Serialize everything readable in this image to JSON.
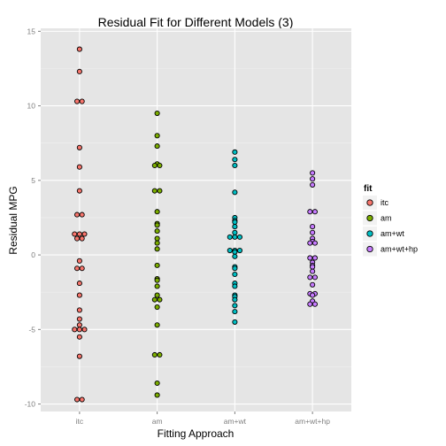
{
  "chart_data": {
    "type": "scatter",
    "title": "Residual Fit for Different Models (3)",
    "xlabel": "Fitting Approach",
    "ylabel": "Residual MPG",
    "categories": [
      "itc",
      "am",
      "am+wt",
      "am+wt+hp"
    ],
    "ylim": [
      -10.5,
      15.2
    ],
    "yticks": [
      -10,
      -5,
      0,
      5,
      10,
      15
    ],
    "grid": true,
    "legend_placement": "right",
    "legend_title": "fit",
    "background": "#e5e5e5",
    "grid_major": "#ffffff",
    "grid_minor": "#f0f0f0",
    "series": [
      {
        "name": "itc",
        "color": "#f8766d",
        "points": [
          13.8,
          12.3,
          10.3,
          10.3,
          7.2,
          5.9,
          4.3,
          2.7,
          2.7,
          1.4,
          1.4,
          1.4,
          1.1,
          1.1,
          -0.4,
          -0.9,
          -0.9,
          -1.9,
          -2.7,
          -3.7,
          -4.3,
          -4.7,
          -5.0,
          -5.0,
          -5.0,
          -5.5,
          -6.8,
          -9.7,
          -9.7
        ]
      },
      {
        "name": "am",
        "color": "#7cae00",
        "points": [
          9.5,
          8.0,
          7.3,
          6.1,
          6.0,
          6.0,
          4.3,
          4.3,
          2.9,
          2.1,
          2.0,
          1.6,
          1.1,
          0.8,
          0.4,
          -0.7,
          -1.6,
          -1.7,
          -2.1,
          -2.7,
          -3.0,
          -3.0,
          -3.5,
          -4.7,
          -6.7,
          -6.7,
          -8.6,
          -9.4
        ]
      },
      {
        "name": "am+wt",
        "color": "#00bfc4",
        "points": [
          6.9,
          6.4,
          6.0,
          4.2,
          2.5,
          2.3,
          2.2,
          1.9,
          1.5,
          1.2,
          1.2,
          1.2,
          0.3,
          0.3,
          0.3,
          0.2,
          -0.1,
          -0.8,
          -0.9,
          -1.3,
          -1.9,
          -2.1,
          -2.7,
          -2.8,
          -3.0,
          -3.4,
          -3.8,
          -4.5
        ]
      },
      {
        "name": "am+wt+hp",
        "color": "#c77cff",
        "points": [
          5.5,
          5.1,
          4.7,
          2.9,
          2.9,
          1.9,
          1.5,
          1.1,
          0.9,
          0.8,
          0.8,
          -0.2,
          -0.2,
          -0.5,
          -0.7,
          -0.8,
          -1.1,
          -1.5,
          -1.5,
          -2.0,
          -2.6,
          -2.6,
          -2.7,
          -3.1,
          -3.3,
          -3.3
        ]
      }
    ]
  }
}
